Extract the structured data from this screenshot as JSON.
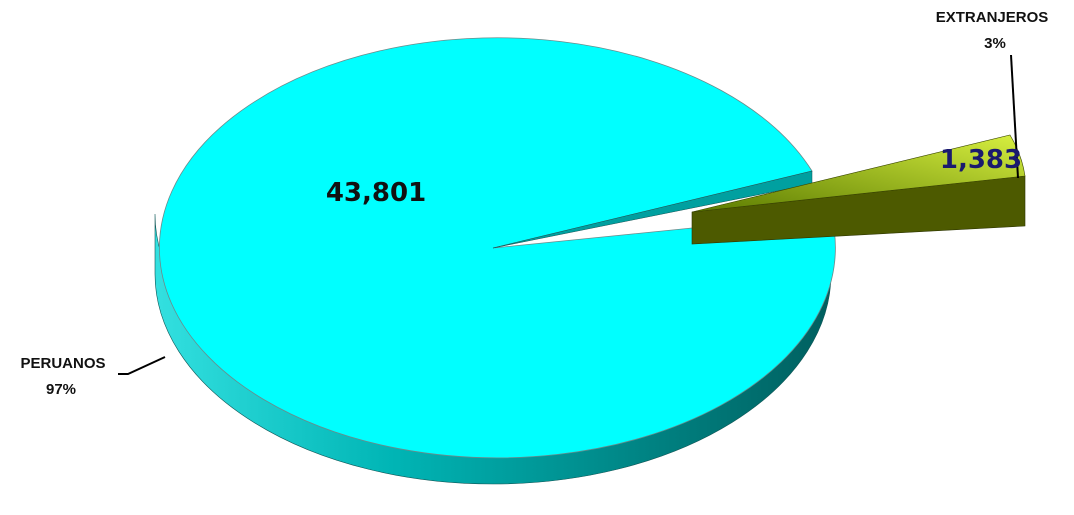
{
  "chart_data": {
    "type": "pie",
    "style": "3d-exploded",
    "slices": [
      {
        "category": "PERUANOS",
        "value": 43801,
        "value_label": "43,801",
        "percent_label": "97%",
        "color": "#00FFFF",
        "side_color": "#008B8B"
      },
      {
        "category": "EXTRANJEROS",
        "value": 1383,
        "value_label": "1,383",
        "percent_label": "3%",
        "color": "#99CC00",
        "side_color": "#4D5A00"
      }
    ]
  }
}
